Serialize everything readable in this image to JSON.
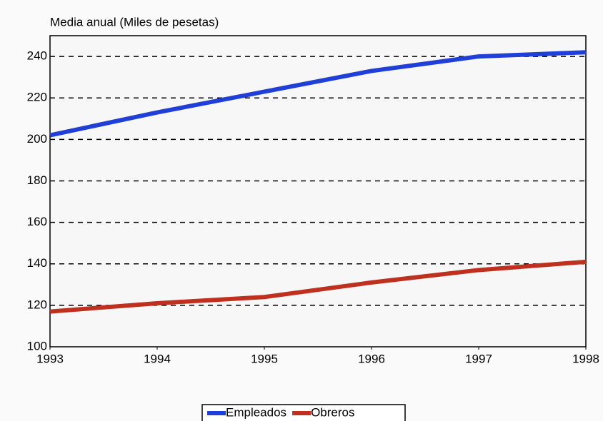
{
  "chart_data": {
    "type": "line",
    "title": "Media anual (Miles de pesetas)",
    "x": [
      1993,
      1994,
      1995,
      1996,
      1997,
      1998
    ],
    "xlim": [
      1993,
      1998
    ],
    "xticks": [
      1993,
      1994,
      1995,
      1996,
      1997,
      1998
    ],
    "ylim": [
      100,
      250
    ],
    "yticks": [
      100,
      120,
      140,
      160,
      180,
      200,
      220,
      240
    ],
    "grid": true,
    "series": [
      {
        "name": "Empleados",
        "color": "#1f3fd8",
        "values": [
          202,
          213,
          223,
          233,
          240,
          242
        ]
      },
      {
        "name": "Obreros",
        "color": "#c0301f",
        "values": [
          117,
          121,
          124,
          131,
          137,
          141
        ]
      }
    ]
  }
}
